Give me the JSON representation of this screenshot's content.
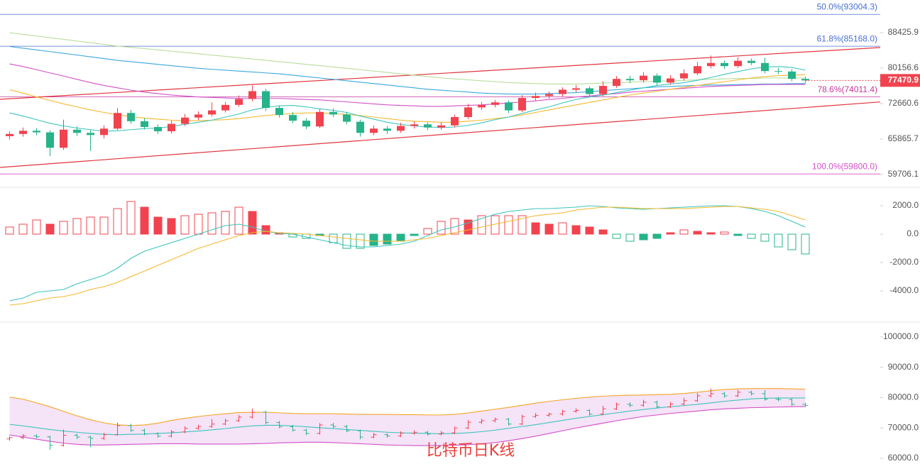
{
  "chart_data": [
    {
      "type": "candlestick",
      "log": true,
      "ylim": [
        57860,
        96780
      ],
      "yticks": [
        88425.9,
        80156.6,
        72660.6,
        65865.7,
        59706.1
      ],
      "up_color": "#f0434f",
      "down_color": "#26b38a",
      "open": [
        66400,
        66800,
        67400,
        67100,
        64300,
        67600,
        67000,
        66600,
        67800,
        70800,
        69200,
        68100,
        67300,
        68700,
        69900,
        70500,
        71300,
        72400,
        73600,
        75200,
        71800,
        70400,
        69300,
        68200,
        71000,
        70500,
        69100,
        67000,
        67800,
        67400,
        68300,
        68600,
        68000,
        68400,
        70000,
        71900,
        72400,
        72900,
        71300,
        73800,
        74200,
        74600,
        75500,
        75800,
        74600,
        76300,
        77800,
        77500,
        78500,
        77000,
        77900,
        79000,
        80600,
        81300,
        80600,
        81800,
        81300,
        79500,
        79400,
        77800
      ],
      "high": [
        67300,
        68000,
        67900,
        67500,
        69500,
        68200,
        67500,
        68400,
        71800,
        71400,
        69800,
        68600,
        69300,
        70600,
        71100,
        72900,
        73000,
        74300,
        76400,
        75700,
        72300,
        71000,
        69800,
        71600,
        71700,
        71000,
        69500,
        68400,
        68300,
        68900,
        69200,
        69000,
        69000,
        70500,
        72600,
        73000,
        73400,
        73300,
        74400,
        74900,
        75100,
        76000,
        76500,
        76200,
        77300,
        78400,
        78500,
        79300,
        79000,
        78600,
        79900,
        81500,
        83000,
        81900,
        82600,
        82300,
        82500,
        80200,
        79900,
        78300
      ],
      "low": [
        65800,
        66300,
        66600,
        62800,
        63900,
        66400,
        63700,
        66000,
        67500,
        68700,
        67600,
        66800,
        66900,
        68300,
        69400,
        70100,
        70900,
        72000,
        73100,
        71200,
        69900,
        68800,
        67700,
        67900,
        70000,
        68600,
        66300,
        66600,
        66800,
        67000,
        67800,
        67500,
        67600,
        68000,
        69600,
        71400,
        71900,
        70800,
        71000,
        73300,
        73700,
        74100,
        75000,
        74000,
        74200,
        75900,
        76900,
        77000,
        76400,
        76600,
        77400,
        78600,
        80100,
        80000,
        80200,
        80800,
        79000,
        78800,
        77300,
        76900
      ],
      "close": [
        66800,
        67400,
        67100,
        64300,
        67600,
        67000,
        66600,
        67800,
        70800,
        69200,
        68100,
        67300,
        68700,
        69900,
        70500,
        71300,
        72400,
        73600,
        75200,
        71800,
        70400,
        69300,
        68200,
        71000,
        70500,
        69100,
        67000,
        67800,
        67400,
        68300,
        68600,
        68000,
        68400,
        70000,
        71900,
        72400,
        72900,
        71300,
        73800,
        74200,
        74600,
        75500,
        75800,
        74600,
        76300,
        77800,
        77500,
        78500,
        77000,
        77900,
        79000,
        80600,
        81300,
        80600,
        81800,
        81300,
        79500,
        79400,
        77800,
        77470.9
      ],
      "series": [
        {
          "color": "#b8dd9a",
          "values": [
            88400,
            88000,
            87600,
            87200,
            86800,
            86400,
            86000,
            85600,
            85200,
            84900,
            84600,
            84300,
            84000,
            83700,
            83400,
            83100,
            82800,
            82500,
            82200,
            81900,
            81600,
            81300,
            81000,
            80700,
            80400,
            80100,
            79800,
            79500,
            79200,
            78900,
            78600,
            78300,
            78000,
            77800,
            77600,
            77400,
            77200,
            77000,
            76900,
            76800,
            76700,
            76700,
            76700,
            76800,
            76900,
            77000,
            77100,
            77200,
            77300,
            77400,
            77500,
            77600,
            77700,
            77800,
            77900,
            77900,
            78000,
            78000,
            78000,
            78000
          ]
        },
        {
          "color": "#3aa8dc",
          "values": [
            85100,
            84700,
            84300,
            83900,
            83500,
            83100,
            82700,
            82300,
            81900,
            81600,
            81300,
            81000,
            80700,
            80400,
            80100,
            79900,
            79700,
            79500,
            79300,
            79100,
            78900,
            78600,
            78300,
            78000,
            77700,
            77400,
            77100,
            76800,
            76500,
            76200,
            75900,
            75600,
            75400,
            75200,
            75000,
            74800,
            74700,
            74600,
            74600,
            74600,
            74700,
            74800,
            74900,
            75100,
            75300,
            75500,
            75700,
            75900,
            76100,
            76200,
            76300,
            76400,
            76500,
            76500,
            76600,
            76600,
            76700,
            76700,
            76800,
            76800
          ]
        },
        {
          "color": "#d34fc9",
          "values": [
            81100,
            80500,
            79800,
            79100,
            78400,
            77700,
            77000,
            76400,
            75900,
            75400,
            75000,
            74700,
            74400,
            74200,
            74000,
            73900,
            73800,
            73700,
            73700,
            73700,
            73700,
            73600,
            73500,
            73400,
            73200,
            73000,
            72800,
            72600,
            72400,
            72300,
            72200,
            72100,
            72100,
            72200,
            72300,
            72400,
            72600,
            72800,
            73000,
            73200,
            73500,
            73700,
            74000,
            74200,
            74500,
            74700,
            75000,
            75200,
            75400,
            75600,
            75800,
            76000,
            76200,
            76300,
            76400,
            76500,
            76600,
            76600,
            76600,
            76600
          ]
        },
        {
          "color": "#f5b82e",
          "values": [
            75500,
            74800,
            74000,
            73300,
            72600,
            72000,
            71400,
            70900,
            70400,
            70100,
            69800,
            69600,
            69400,
            69300,
            69300,
            69400,
            69500,
            69700,
            70000,
            70300,
            70500,
            70700,
            70800,
            70800,
            70700,
            70500,
            70300,
            70000,
            69700,
            69400,
            69200,
            69100,
            69000,
            69000,
            69200,
            69400,
            69700,
            70000,
            70400,
            70900,
            71400,
            71900,
            72400,
            72900,
            73400,
            73900,
            74400,
            74800,
            75200,
            75600,
            76000,
            76400,
            76800,
            77200,
            77600,
            78000,
            78300,
            78500,
            78600,
            78700
          ]
        },
        {
          "color": "#3cc4bd",
          "values": [
            70800,
            70200,
            69500,
            68800,
            68300,
            67900,
            67600,
            67300,
            67400,
            67600,
            67800,
            67900,
            68200,
            68600,
            69000,
            69400,
            70000,
            70600,
            71400,
            71900,
            72200,
            72300,
            72000,
            71600,
            71300,
            70900,
            70200,
            69600,
            69000,
            68600,
            68300,
            68100,
            68000,
            68100,
            68400,
            68900,
            69500,
            70000,
            70700,
            71400,
            72000,
            72800,
            73500,
            74000,
            74400,
            74900,
            75400,
            75900,
            76400,
            76700,
            77000,
            77500,
            78100,
            78800,
            79400,
            80000,
            80400,
            80500,
            80300,
            79700
          ]
        }
      ],
      "levels": [
        {
          "value": 93004.3,
          "label": "50.0%(93004.3)",
          "color": "#4a6fd1"
        },
        {
          "value": 85168.0,
          "label": "61.8%(85168.0)",
          "color": "#4a6fd1"
        },
        {
          "value": 74011.4,
          "label": "78.6%(74011.4)",
          "color": "#c2389e"
        },
        {
          "value": 59800.0,
          "label": "100.0%(59800.0)",
          "color": "#d34fc9"
        }
      ],
      "trendlines": [
        {
          "color": "#e0353f",
          "start": 73515,
          "end": 84850
        },
        {
          "color": "#e0353f",
          "start": 60890,
          "end": 72990
        }
      ]
    },
    {
      "type": "macd",
      "ylim": [
        -6000,
        3000
      ],
      "yticks": [
        {
          "value": 2000,
          "label": "2000.0"
        },
        {
          "value": 0,
          "label": "0.0"
        },
        {
          "value": -2000,
          "label": "-2000.0"
        },
        {
          "value": -4000,
          "label": "-4000.0"
        }
      ],
      "up_color": "#f0434f",
      "down_color": "#26b38a",
      "values": [
        500,
        700,
        1000,
        700,
        900,
        1100,
        1200,
        1200,
        1800,
        2300,
        1900,
        1200,
        1100,
        1300,
        1400,
        1500,
        1600,
        1900,
        1600,
        600,
        100,
        -200,
        -300,
        -100,
        -600,
        -1000,
        -1000,
        -800,
        -700,
        -500,
        -100,
        400,
        900,
        1100,
        1000,
        1300,
        1300,
        1300,
        1300,
        800,
        700,
        800,
        600,
        500,
        300,
        -300,
        -500,
        -400,
        -300,
        100,
        300,
        200,
        100,
        150,
        -100,
        -300,
        -500,
        -900,
        -1100,
        -1400
      ],
      "series": [
        {
          "color": "#3cc4bd",
          "values": [
            -4700,
            -4500,
            -4100,
            -4000,
            -3900,
            -3500,
            -3200,
            -2900,
            -2400,
            -1700,
            -1200,
            -900,
            -600,
            -300,
            0,
            300,
            600,
            700,
            500,
            200,
            50,
            0,
            -200,
            -400,
            -600,
            -800,
            -900,
            -900,
            -800,
            -700,
            -500,
            -100,
            300,
            500,
            800,
            1100,
            1400,
            1600,
            1700,
            1800,
            1800,
            1850,
            1900,
            2000,
            1950,
            1850,
            1800,
            1750,
            1800,
            1850,
            1900,
            1950,
            2000,
            2000,
            1950,
            1800,
            1600,
            1300,
            900,
            500
          ]
        },
        {
          "color": "#f5b82e",
          "values": [
            -5000,
            -4900,
            -4700,
            -4500,
            -4400,
            -4200,
            -3900,
            -3700,
            -3400,
            -3000,
            -2600,
            -2200,
            -1800,
            -1400,
            -1000,
            -700,
            -400,
            -100,
            100,
            200,
            100,
            50,
            0,
            -100,
            -200,
            -300,
            -400,
            -500,
            -500,
            -500,
            -400,
            -300,
            -100,
            100,
            300,
            500,
            700,
            900,
            1100,
            1300,
            1400,
            1500,
            1700,
            1800,
            1900,
            1900,
            1850,
            1800,
            1800,
            1800,
            1800,
            1850,
            1900,
            1950,
            1950,
            1850,
            1750,
            1600,
            1300,
            1000
          ]
        }
      ]
    },
    {
      "type": "bollinger",
      "ylim": [
        58130,
        103510
      ],
      "yticks": [
        {
          "value": 100000,
          "label": "100000.0"
        },
        {
          "value": 90000,
          "label": "90000.0"
        },
        {
          "value": 80000,
          "label": "80000.0"
        },
        {
          "value": 70000,
          "label": "70000.0"
        },
        {
          "value": 60000,
          "label": "60000.0"
        }
      ],
      "fill": "#f3dcf5",
      "series": [
        {
          "color": "#f5a623",
          "values": [
            80200,
            79500,
            78300,
            77000,
            75500,
            74000,
            72700,
            71700,
            71000,
            70800,
            71000,
            71600,
            72500,
            73200,
            73800,
            74300,
            74700,
            75100,
            75200,
            75200,
            75000,
            74800,
            74700,
            74700,
            74700,
            74600,
            74500,
            74500,
            74500,
            74400,
            74400,
            74300,
            74300,
            74500,
            75000,
            75600,
            76200,
            76800,
            77500,
            78200,
            78800,
            79300,
            79800,
            80200,
            80500,
            80700,
            80800,
            80900,
            81000,
            81100,
            81400,
            81800,
            82300,
            82700,
            82900,
            83000,
            83000,
            83000,
            82900,
            82800
          ]
        },
        {
          "color": "#3cc4bd",
          "values": [
            71200,
            70700,
            70100,
            69500,
            69000,
            68600,
            68200,
            67900,
            67800,
            67900,
            68000,
            68200,
            68400,
            68700,
            69000,
            69400,
            69800,
            70300,
            70700,
            70900,
            70900,
            70700,
            70400,
            70100,
            69800,
            69500,
            69200,
            68900,
            68600,
            68400,
            68300,
            68200,
            68100,
            68200,
            68400,
            68800,
            69300,
            69900,
            70500,
            71100,
            71800,
            72500,
            73200,
            73800,
            74400,
            75000,
            75600,
            76100,
            76600,
            77000,
            77400,
            77800,
            78300,
            78800,
            79200,
            79600,
            79800,
            79900,
            79900,
            79900
          ]
        },
        {
          "color": "#d34fc9",
          "values": [
            67700,
            67000,
            66300,
            65600,
            65000,
            64600,
            64400,
            64400,
            64500,
            64600,
            64700,
            64800,
            64800,
            64800,
            64700,
            64700,
            64700,
            64700,
            64800,
            64900,
            65100,
            65200,
            65300,
            65300,
            65200,
            65000,
            64800,
            64600,
            64400,
            64300,
            64200,
            64200,
            64200,
            64300,
            64500,
            64800,
            65200,
            65800,
            66500,
            67300,
            68200,
            69100,
            70000,
            70800,
            71600,
            72400,
            73100,
            73800,
            74300,
            74800,
            75200,
            75600,
            76000,
            76300,
            76500,
            76700,
            76800,
            76900,
            77000,
            77100
          ]
        }
      ]
    }
  ],
  "watermark": "比特币日K线"
}
